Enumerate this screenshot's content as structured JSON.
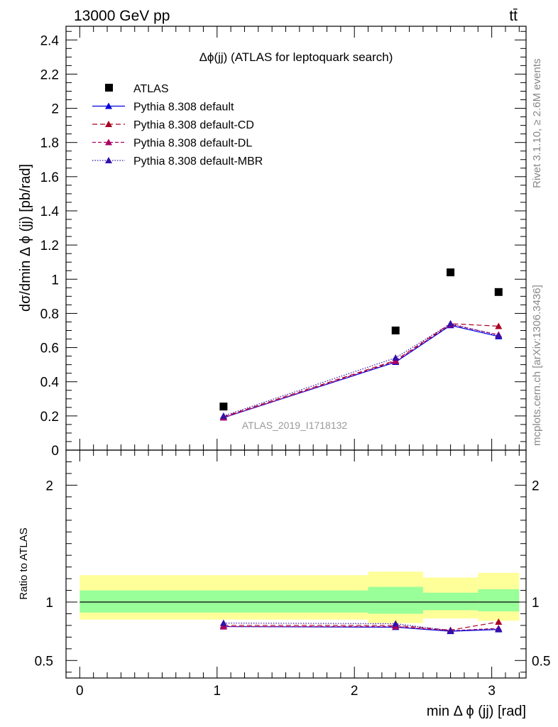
{
  "header": {
    "energy": "13000 GeV pp",
    "process": "tt̄"
  },
  "side_labels": {
    "rivet": "Rivet 3.1.10, ≥ 2.6M events",
    "source": "mcplots.cern.ch [arXiv:1306.3436]"
  },
  "chart_data": {
    "type": "line",
    "title": "Δϕ(jj) (ATLAS for leptoquark search)",
    "watermark": "ATLAS_2019_I1718132",
    "xlabel": "min Δ ϕ (jj) [rad]",
    "ylabel": "dσ/dmin Δ ϕ (jj) [pb/rad]",
    "ratio_ylabel": "Ratio to ATLAS",
    "xlim": [
      -0.1,
      3.25
    ],
    "ylim": [
      0,
      2.48
    ],
    "ratio_ylim": [
      0.35,
      2.3
    ],
    "x_ticks": [
      0,
      1,
      2,
      3
    ],
    "x_tick_labels": [
      "0",
      "1",
      "2",
      "3"
    ],
    "y_ticks": [
      0,
      0.2,
      0.4,
      0.6,
      0.8,
      1,
      1.2,
      1.4,
      1.6,
      1.8,
      2,
      2.2,
      2.4
    ],
    "y_tick_labels": [
      "0",
      "0.2",
      "0.4",
      "0.6",
      "0.8",
      "1",
      "1.2",
      "1.4",
      "1.6",
      "1.8",
      "2",
      "2.2",
      "2.4"
    ],
    "ratio_ticks": [
      0.5,
      1,
      2
    ],
    "ratio_tick_labels": [
      "0.5",
      "1",
      "2"
    ],
    "legend_position": "top-left",
    "data": {
      "name": "ATLAS",
      "x": [
        1.047,
        2.3,
        2.7,
        3.05
      ],
      "y": [
        0.255,
        0.7,
        1.04,
        0.925
      ],
      "color": "#000000"
    },
    "bands": {
      "x_edges": [
        [
          0,
          2.1
        ],
        [
          2.1,
          2.5
        ],
        [
          2.5,
          2.9
        ],
        [
          2.9,
          3.2
        ]
      ],
      "inner": [
        [
          0.91,
          1.1
        ],
        [
          0.9,
          1.13
        ],
        [
          0.93,
          1.08
        ],
        [
          0.92,
          1.11
        ]
      ],
      "outer": [
        [
          0.85,
          1.23
        ],
        [
          0.82,
          1.26
        ],
        [
          0.86,
          1.21
        ],
        [
          0.84,
          1.25
        ]
      ],
      "inner_color": "#99ff99",
      "outer_color": "#ffff99"
    },
    "series": [
      {
        "name": "Pythia 8.308 default",
        "x": [
          1.047,
          2.3,
          2.7,
          3.05
        ],
        "values": [
          0.19,
          0.515,
          0.73,
          0.665
        ],
        "ratio": [
          0.79,
          0.785,
          0.75,
          0.765
        ],
        "color": "#0000dd",
        "dash": "none",
        "ratio_band": [
          0.0,
          0.0,
          0.0,
          0.0
        ]
      },
      {
        "name": "Pythia 8.308 default-CD",
        "x": [
          1.047,
          2.3,
          2.7,
          3.05
        ],
        "values": [
          0.195,
          0.525,
          0.74,
          0.725
        ],
        "ratio": [
          0.8,
          0.8,
          0.76,
          0.83
        ],
        "color": "#aa0022",
        "dash": "7,4",
        "ratio_band": [
          0.0,
          0.0,
          0.0,
          0.0
        ]
      },
      {
        "name": "Pythia 8.308 default-DL",
        "x": [
          1.047,
          2.3,
          2.7,
          3.05
        ],
        "values": [
          0.19,
          0.52,
          0.735,
          0.675
        ],
        "ratio": [
          0.79,
          0.79,
          0.755,
          0.775
        ],
        "color": "#aa0066",
        "dash": "5,3",
        "ratio_band": [
          0.0,
          0.0,
          0.0,
          0.0
        ]
      },
      {
        "name": "Pythia 8.308 default-MBR",
        "x": [
          1.047,
          2.3,
          2.7,
          3.05
        ],
        "values": [
          0.2,
          0.54,
          0.74,
          0.67
        ],
        "ratio": [
          0.82,
          0.815,
          0.755,
          0.77
        ],
        "color": "#3311aa",
        "dash": "1.5,2",
        "ratio_band": [
          0.0,
          0.0,
          0.0,
          0.0
        ]
      }
    ]
  }
}
